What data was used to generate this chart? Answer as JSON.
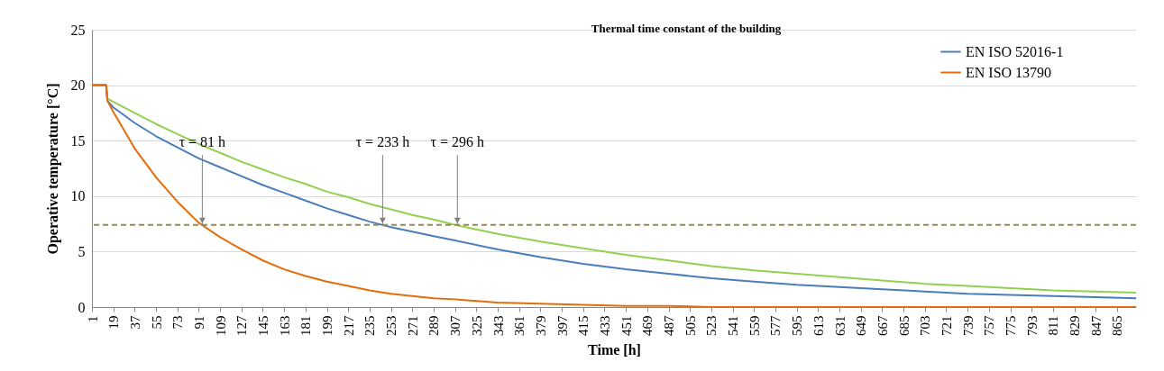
{
  "chart_data": {
    "type": "line",
    "title": "Thermal time constant of the building",
    "xlabel": "Time [h]",
    "ylabel": "Operative temperature [°C]",
    "xlim": [
      1,
      881
    ],
    "xticks": [
      1,
      19,
      37,
      55,
      73,
      91,
      109,
      127,
      145,
      163,
      181,
      199,
      217,
      235,
      253,
      271,
      289,
      307,
      325,
      343,
      361,
      379,
      397,
      415,
      433,
      451,
      469,
      487,
      505,
      523,
      541,
      559,
      577,
      595,
      613,
      631,
      649,
      667,
      685,
      703,
      721,
      739,
      757,
      775,
      793,
      811,
      829,
      847,
      865
    ],
    "ylim": [
      0,
      25
    ],
    "yticks": [
      0,
      5,
      10,
      15,
      20,
      25
    ],
    "grid": "y",
    "legend": "top right",
    "line_style": "solid",
    "marker": "none",
    "x": [
      1,
      13,
      14,
      19,
      37,
      55,
      73,
      91,
      109,
      127,
      145,
      163,
      181,
      199,
      217,
      235,
      253,
      271,
      289,
      307,
      343,
      379,
      415,
      451,
      487,
      523,
      559,
      595,
      631,
      667,
      703,
      739,
      775,
      811,
      847,
      881
    ],
    "series": [
      {
        "color": "#92d050",
        "values": [
          20,
          20,
          18.8,
          18.5,
          17.5,
          16.5,
          15.6,
          14.7,
          13.9,
          13.1,
          12.4,
          11.7,
          11.1,
          10.4,
          9.9,
          9.3,
          8.8,
          8.3,
          7.9,
          7.4,
          6.6,
          5.9,
          5.3,
          4.7,
          4.2,
          3.7,
          3.3,
          3.0,
          2.7,
          2.4,
          2.1,
          1.9,
          1.7,
          1.5,
          1.4,
          1.3
        ]
      },
      {
        "name": "EN ISO 52016-1",
        "color": "#4a7ebb",
        "values": [
          20,
          20,
          18.6,
          18.0,
          16.6,
          15.4,
          14.4,
          13.4,
          12.6,
          11.8,
          11.0,
          10.3,
          9.6,
          8.9,
          8.3,
          7.7,
          7.2,
          6.8,
          6.4,
          6.0,
          5.2,
          4.5,
          3.9,
          3.4,
          3.0,
          2.6,
          2.3,
          2.0,
          1.8,
          1.6,
          1.4,
          1.2,
          1.1,
          1.0,
          0.9,
          0.8
        ]
      },
      {
        "name": "EN ISO 13790",
        "color": "#e46c0a",
        "values": [
          20,
          20,
          18.6,
          17.6,
          14.3,
          11.7,
          9.5,
          7.6,
          6.3,
          5.2,
          4.2,
          3.4,
          2.8,
          2.3,
          1.9,
          1.5,
          1.2,
          1.0,
          0.8,
          0.7,
          0.4,
          0.3,
          0.2,
          0.1,
          0.1,
          0.0,
          0.0,
          0.0,
          0.0,
          0.0,
          0.0,
          0.0,
          0.0,
          0.0,
          0.0,
          0.0
        ]
      }
    ],
    "ref_lines": [
      {
        "axis": "y",
        "value": 7.4,
        "color": "#948a54",
        "line_style": "dashed"
      }
    ],
    "annotations": [
      {
        "text": "τ = 81 h",
        "x": 94,
        "y": 7.4
      },
      {
        "text": "τ = 233 h",
        "x": 246,
        "y": 7.4
      },
      {
        "text": "τ = 296 h",
        "x": 309,
        "y": 7.4
      }
    ]
  }
}
